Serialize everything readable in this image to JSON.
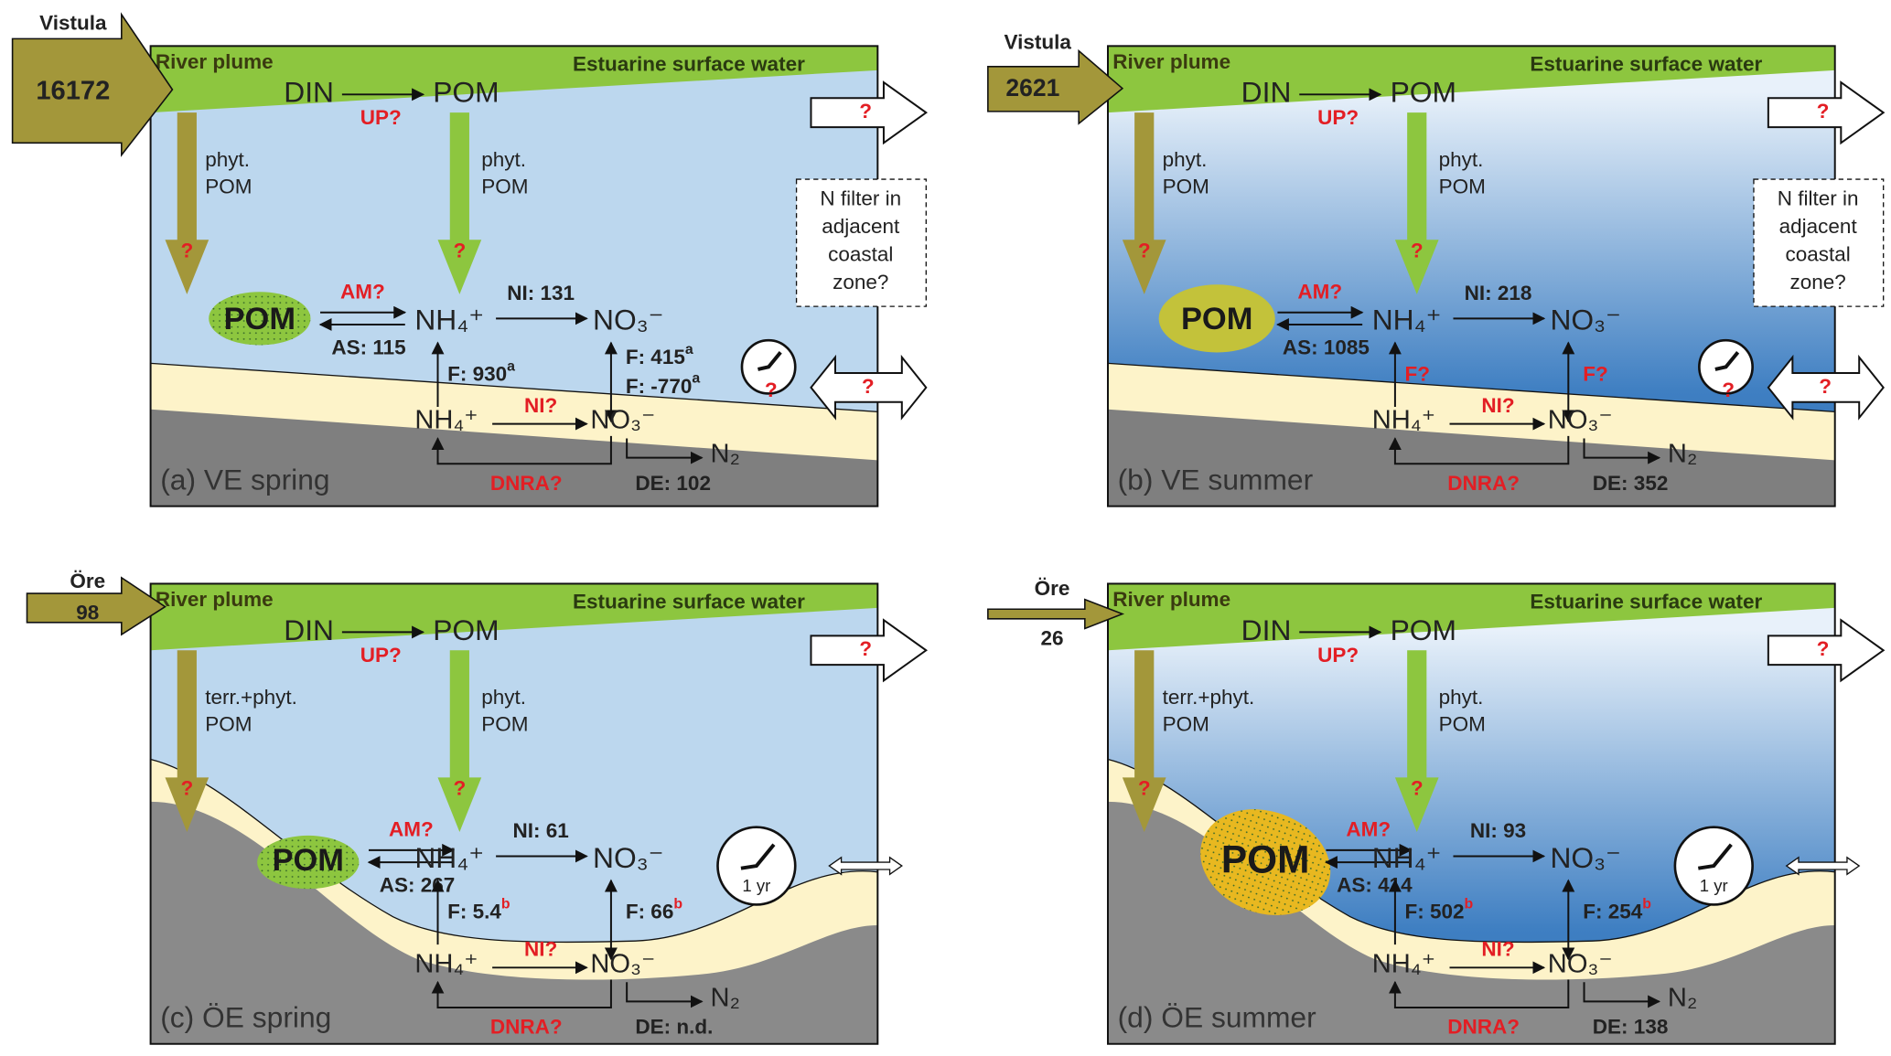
{
  "panels": [
    {
      "label": "(a) VE spring",
      "river": "Vistula",
      "inflow": "16172",
      "plume": "River plume",
      "surface": "Estuarine surface water",
      "din": "DIN",
      "pom_top": "POM",
      "up": "UP?",
      "left_pom": [
        "phyt.",
        "POM"
      ],
      "center_pom": [
        "phyt.",
        "POM"
      ],
      "left_q": "?",
      "center_q": "?",
      "out_q": "?",
      "filter": [
        "N filter in",
        "adjacent",
        "coastal",
        "zone?"
      ],
      "pom": "POM",
      "am": "AM?",
      "as": "AS: 115",
      "nh4_water": "NH₄⁺",
      "ni_water": "NI: 131",
      "no3_water": "NO₃⁻",
      "f_nh4": {
        "text": "F: 930",
        "sup": "a"
      },
      "f_no3": [
        {
          "text": "F: 415",
          "sup": "a"
        },
        {
          "text": "F: -770",
          "sup": "a"
        }
      ],
      "sup_color": "#222222",
      "clock_q": "?",
      "exch_q": "?",
      "nh4_sed": "NH₄⁺",
      "ni_sed": "NI?",
      "no3_sed": "NO₃⁻",
      "dnra": "DNRA?",
      "de": "DE: 102",
      "n2": "N₂"
    },
    {
      "label": "(b) VE summer",
      "river": "Vistula",
      "inflow": "2621",
      "plume": "River plume",
      "surface": "Estuarine surface water",
      "din": "DIN",
      "pom_top": "POM",
      "up": "UP?",
      "left_pom": [
        "phyt.",
        "POM"
      ],
      "center_pom": [
        "phyt.",
        "POM"
      ],
      "left_q": "?",
      "center_q": "?",
      "out_q": "?",
      "filter": [
        "N filter in",
        "adjacent",
        "coastal",
        "zone?"
      ],
      "pom": "POM",
      "am": "AM?",
      "as": "AS: 1085",
      "nh4_water": "NH₄⁺",
      "ni_water": "NI: 218",
      "no3_water": "NO₃⁻",
      "f_nh4": {
        "text": "F?"
      },
      "f_no3": [
        {
          "text": "F?"
        }
      ],
      "sup_color": "#222222",
      "clock_q": "?",
      "exch_q": "?",
      "nh4_sed": "NH₄⁺",
      "ni_sed": "NI?",
      "no3_sed": "NO₃⁻",
      "dnra": "DNRA?",
      "de": "DE: 352",
      "n2": "N₂"
    },
    {
      "label": "(c) ÖE spring",
      "river": "Öre",
      "inflow": "98",
      "plume": "River plume",
      "surface": "Estuarine surface water",
      "din": "DIN",
      "pom_top": "POM",
      "up": "UP?",
      "left_pom": [
        "terr.+phyt.",
        "POM"
      ],
      "center_pom": [
        "phyt.",
        "POM"
      ],
      "left_q": "?",
      "center_q": "?",
      "out_q": "?",
      "pom": "POM",
      "am": "AM?",
      "as": "AS: 267",
      "nh4_water": "NH₄⁺",
      "ni_water": "NI: 61",
      "no3_water": "NO₃⁻",
      "f_nh4": {
        "text": "F: 5.4",
        "sup": "b"
      },
      "f_no3": [
        {
          "text": "F: 66",
          "sup": "b"
        }
      ],
      "sup_color": "#e31e24",
      "clock_label": "1 yr",
      "nh4_sed": "NH₄⁺",
      "ni_sed": "NI?",
      "no3_sed": "NO₃⁻",
      "dnra": "DNRA?",
      "de": "DE: n.d.",
      "n2": "N₂"
    },
    {
      "label": "(d) ÖE summer",
      "river": "Öre",
      "inflow": "26",
      "plume": "River plume",
      "surface": "Estuarine surface water",
      "din": "DIN",
      "pom_top": "POM",
      "up": "UP?",
      "left_pom": [
        "terr.+phyt.",
        "POM"
      ],
      "center_pom": [
        "phyt.",
        "POM"
      ],
      "left_q": "?",
      "center_q": "?",
      "out_q": "?",
      "pom": "POM",
      "am": "AM?",
      "as": "AS: 414",
      "nh4_water": "NH₄⁺",
      "ni_water": "NI: 93",
      "no3_water": "NO₃⁻",
      "f_nh4": {
        "text": "F: 502",
        "sup": "b"
      },
      "f_no3": [
        {
          "text": "F: 254",
          "sup": "b"
        }
      ],
      "sup_color": "#e31e24",
      "clock_label": "1 yr",
      "nh4_sed": "NH₄⁺",
      "ni_sed": "NI?",
      "no3_sed": "NO₃⁻",
      "dnra": "DNRA?",
      "de": "DE: 138",
      "n2": "N₂"
    }
  ]
}
